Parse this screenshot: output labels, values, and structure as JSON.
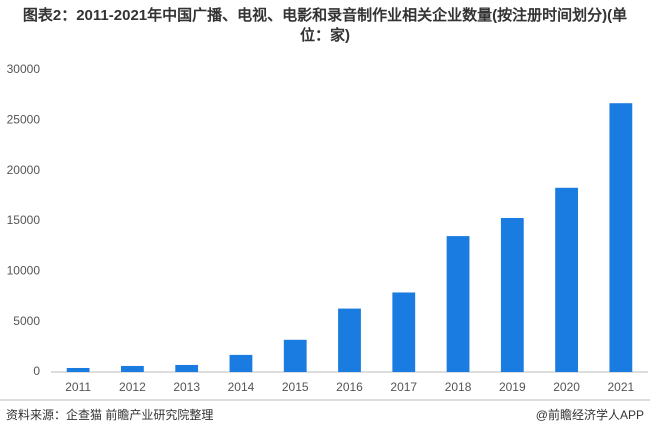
{
  "chart_data": {
    "type": "bar",
    "title": "图表2：2011-2021年中国广播、电视、电影和录音制作业相关企业数量(按注册时间划分)(单位：家)",
    "categories": [
      "2011",
      "2012",
      "2013",
      "2014",
      "2015",
      "2016",
      "2017",
      "2018",
      "2019",
      "2020",
      "2021"
    ],
    "values": [
      400,
      600,
      700,
      1700,
      3200,
      6300,
      7900,
      13500,
      15300,
      18300,
      26700
    ],
    "color": "#1a7be0",
    "ylim": [
      0,
      30000
    ],
    "yticks": [
      0,
      5000,
      10000,
      15000,
      20000,
      25000,
      30000
    ],
    "grid": false,
    "source": "资料来源：企查猫 前瞻产业研究院整理",
    "credit": "@前瞻经济学人APP"
  }
}
